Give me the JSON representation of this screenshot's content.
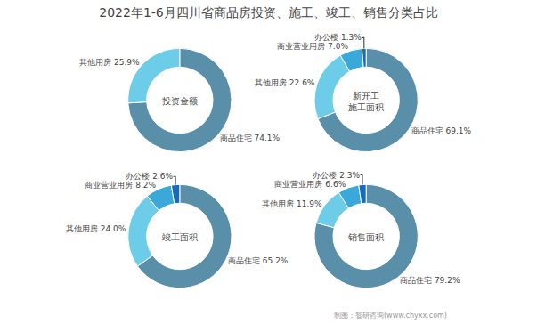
{
  "title": "2022年1-6月四川省商品房投资、施工、竣工、销售分类占比",
  "annotations": [
    "制图：智研咨询(www.chyxx.com)"
  ],
  "chart_data": [
    {
      "type": "pie",
      "title": "投资金额",
      "categories": [
        "商品住宅",
        "其他用房"
      ],
      "values": [
        74.1,
        25.9
      ],
      "value_labels": [
        "商品住宅 74.1%",
        "其他用房 25.9%"
      ],
      "colors": [
        "#5a8faa",
        "#6dcde8"
      ],
      "data_labels": true
    },
    {
      "type": "pie",
      "title": "新开工\n施工面积",
      "categories": [
        "商品住宅",
        "其他用房",
        "商业营业用房",
        "办公楼"
      ],
      "values": [
        69.1,
        22.6,
        7.0,
        1.3
      ],
      "value_labels": [
        "商品住宅 69.1%",
        "其他用房 22.6%",
        "商业营业用房 7.0%",
        "办公楼 1.3%"
      ],
      "colors": [
        "#5a8faa",
        "#6dcde8",
        "#3aa8d8",
        "#1a6ab8"
      ],
      "data_labels": true
    },
    {
      "type": "pie",
      "title": "竣工面积",
      "categories": [
        "商品住宅",
        "其他用房",
        "商业营业用房",
        "办公楼"
      ],
      "values": [
        65.2,
        24.0,
        8.2,
        2.6
      ],
      "value_labels": [
        "商品住宅 65.2%",
        "其他用房 24.0%",
        "商业营业用房 8.2%",
        "办公楼 2.6%"
      ],
      "colors": [
        "#5a8faa",
        "#6dcde8",
        "#3aa8d8",
        "#1a6ab8"
      ],
      "data_labels": true
    },
    {
      "type": "pie",
      "title": "销售面积",
      "categories": [
        "商品住宅",
        "其他用房",
        "商业营业用房",
        "办公楼"
      ],
      "values": [
        79.2,
        11.9,
        6.6,
        2.3
      ],
      "value_labels": [
        "商品住宅 79.2%",
        "其他用房 11.9%",
        "商业营业用房 6.6%",
        "办公楼 2.3%"
      ],
      "colors": [
        "#5a8faa",
        "#6dcde8",
        "#3aa8d8",
        "#1a6ab8"
      ],
      "data_labels": true
    }
  ]
}
